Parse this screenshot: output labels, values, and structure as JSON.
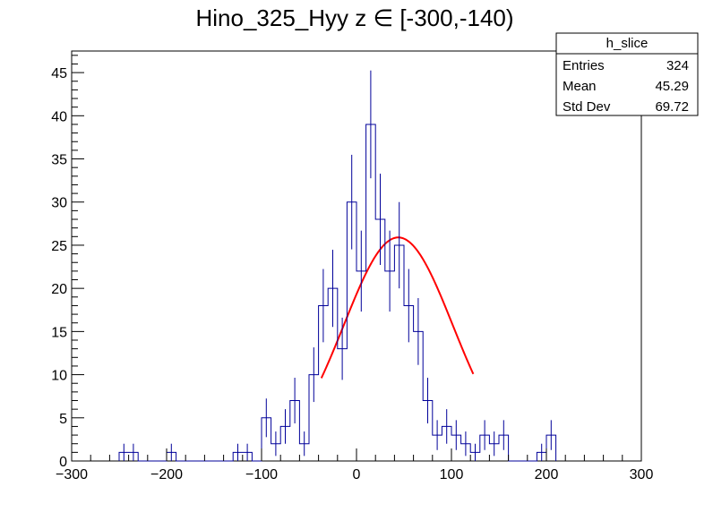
{
  "chart_data": {
    "type": "histogram",
    "title": "Hino_325_Hyy z  ∈ [-300,-140)",
    "xlim": [
      -300,
      300
    ],
    "ylim": [
      0,
      47.5
    ],
    "x_ticks": [
      -300,
      -200,
      -100,
      0,
      100,
      200,
      300
    ],
    "x_tick_labels": [
      "−300",
      "−200",
      "−100",
      "0",
      "100",
      "200",
      "300"
    ],
    "y_ticks": [
      0,
      5,
      10,
      15,
      20,
      25,
      30,
      35,
      40,
      45
    ],
    "y_tick_labels": [
      "0",
      "5",
      "10",
      "15",
      "20",
      "25",
      "30",
      "35",
      "40",
      "45"
    ],
    "bin_width": 10,
    "bins_start": -250,
    "counts": [
      1,
      1,
      0,
      0,
      0,
      1,
      0,
      0,
      0,
      0,
      0,
      0,
      1,
      1,
      0,
      5,
      2,
      4,
      7,
      2,
      10,
      18,
      20,
      13,
      30,
      22,
      39,
      28,
      22,
      25,
      18,
      15,
      7,
      3,
      4,
      3,
      2,
      1,
      3,
      2,
      3,
      0,
      0,
      0,
      1,
      3
    ],
    "fit": {
      "type": "gaus",
      "amplitude": 25.9,
      "mean": 44,
      "sigma": 57.5,
      "range": [
        -37,
        123
      ],
      "color": "#ff0000"
    },
    "hist_color": "#000099",
    "error_color": "#000099",
    "stats_box": {
      "name": "h_slice",
      "rows": [
        {
          "label": "Entries",
          "value": "324"
        },
        {
          "label": "Mean",
          "value": "45.29"
        },
        {
          "label": "Std Dev",
          "value": "69.72"
        }
      ]
    }
  }
}
